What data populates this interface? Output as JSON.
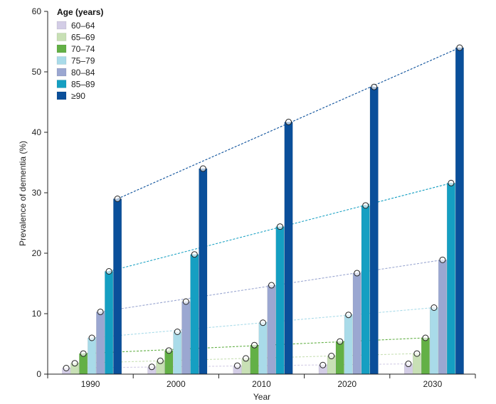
{
  "chart_data": {
    "type": "bar",
    "xlabel": "Year",
    "ylabel": "Prevalence of dementia (%)",
    "ylim": [
      0,
      60
    ],
    "yticks": [
      0,
      10,
      20,
      30,
      40,
      50,
      60
    ],
    "categories": [
      "1990",
      "2000",
      "2010",
      "2020",
      "2030"
    ],
    "legend": {
      "title": "Age (years)",
      "placement": "top-left"
    },
    "grid": false,
    "trend_lines": "dashed lines connect each age group's values across years",
    "series": [
      {
        "name": "60–64",
        "color": "#d3cde6",
        "values": [
          1.0,
          1.2,
          1.4,
          1.5,
          1.7
        ]
      },
      {
        "name": "65–69",
        "color": "#c8e0b5",
        "values": [
          1.8,
          2.2,
          2.6,
          3.0,
          3.4
        ]
      },
      {
        "name": "70–74",
        "color": "#63b046",
        "values": [
          3.4,
          3.9,
          4.8,
          5.4,
          6.0
        ]
      },
      {
        "name": "75–79",
        "color": "#a9dbe9",
        "values": [
          6.0,
          7.0,
          8.5,
          9.8,
          11.0
        ]
      },
      {
        "name": "80–84",
        "color": "#9ba7d1",
        "values": [
          10.3,
          12.0,
          14.7,
          16.7,
          18.9
        ]
      },
      {
        "name": "85–89",
        "color": "#159fc2",
        "values": [
          17.0,
          19.8,
          24.4,
          27.9,
          31.6
        ]
      },
      {
        "name": "≥90",
        "color": "#0a4f9a",
        "values": [
          29.0,
          34.0,
          41.7,
          47.5,
          54.0
        ]
      }
    ]
  }
}
